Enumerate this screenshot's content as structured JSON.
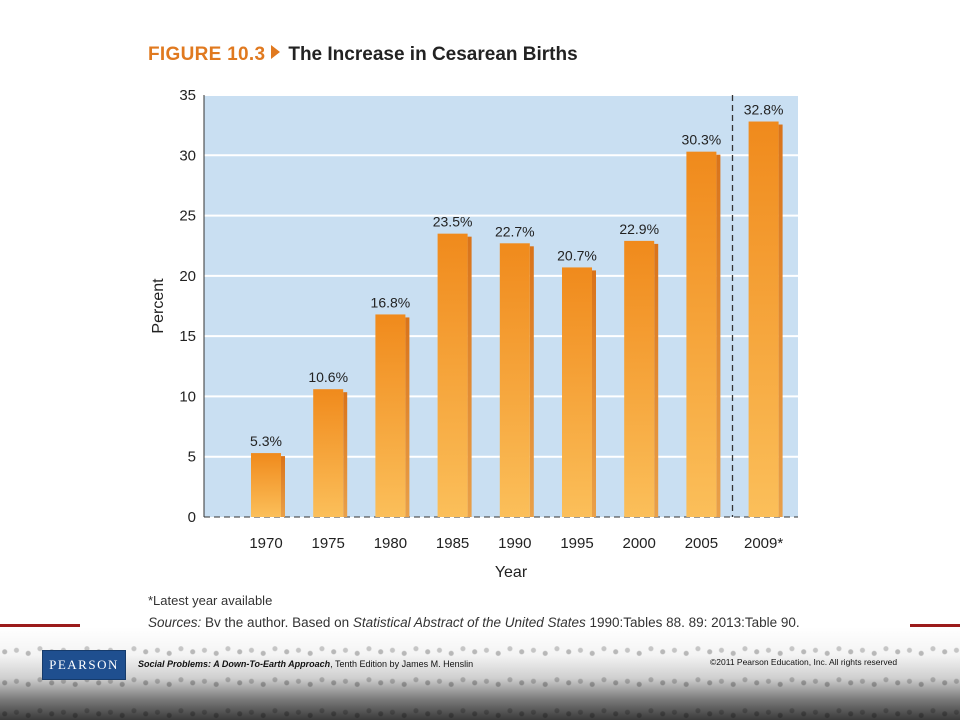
{
  "figure": {
    "label": "FIGURE 10.3",
    "title": "The Increase in Cesarean Births"
  },
  "chart_data": {
    "type": "bar",
    "categories": [
      "1970",
      "1975",
      "1980",
      "1985",
      "1990",
      "1995",
      "2000",
      "2005",
      "2009*"
    ],
    "values": [
      5.3,
      10.6,
      16.8,
      23.5,
      22.7,
      20.7,
      22.9,
      30.3,
      32.8
    ],
    "data_labels": [
      "5.3%",
      "10.6%",
      "16.8%",
      "23.5%",
      "22.7%",
      "20.7%",
      "22.9%",
      "30.3%",
      "32.8%"
    ],
    "title": "The Increase in Cesarean Births",
    "xlabel": "Year",
    "ylabel": "Percent",
    "ylim": [
      0,
      35
    ],
    "yticks": [
      "0",
      "5",
      "10",
      "15",
      "20",
      "25",
      "30",
      "35"
    ],
    "grid": true,
    "bar_color": "#f39a2c",
    "plot_background": "#c9dff2",
    "separator_before_last": "dashed"
  },
  "note": "*Latest year available",
  "sources": {
    "prefix": "Sources:",
    "text1": " By the author. Based on ",
    "publication": "Statistical Abstract of the United States",
    "text2": " 1990:Tables 88, 89; 2013:Table 90."
  },
  "footer": {
    "logo": "PEARSON",
    "book_title": "Social Problems: A Down-To-Earth Approach",
    "book_rest": ", Tenth Edition by James M. Henslin",
    "copyright": "©2011 Pearson Education, Inc.  All rights reserved"
  }
}
